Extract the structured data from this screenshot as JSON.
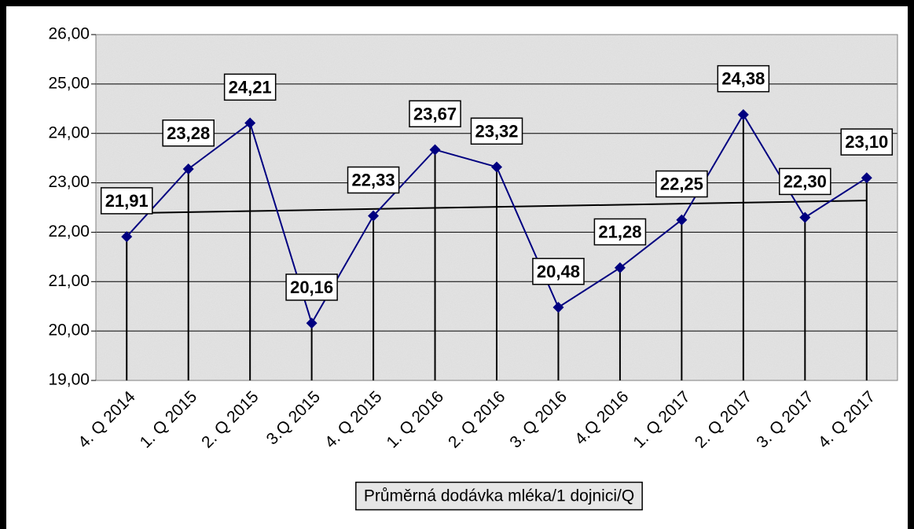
{
  "chart_data": {
    "type": "line",
    "categories": [
      "4. Q 2014",
      "1. Q 2015",
      "2. Q 2015",
      "3.Q 2015",
      "4. Q 2015",
      "1. Q 2016",
      "2. Q 2016",
      "3. Q 2016",
      "4.Q 2016",
      "1. Q 2017",
      "2. Q 2017",
      "3. Q 2017",
      "4. Q 2017"
    ],
    "series": [
      {
        "name": "Průměrná dodávka mléka/1 dojnici/Q",
        "color": "#000080",
        "values": [
          21.91,
          23.28,
          24.21,
          20.16,
          22.33,
          23.67,
          23.32,
          20.48,
          21.28,
          22.25,
          24.38,
          22.3,
          23.1
        ],
        "value_labels": [
          "21,91",
          "23,28",
          "24,21",
          "20,16",
          "22,33",
          "23,67",
          "23,32",
          "20,48",
          "21,28",
          "22,25",
          "24,38",
          "22,30",
          "23,10"
        ]
      }
    ],
    "ylim": [
      19,
      26
    ],
    "yticks": [
      {
        "value": 19,
        "label": "19,00"
      },
      {
        "value": 20,
        "label": "20,00"
      },
      {
        "value": 21,
        "label": "21,00"
      },
      {
        "value": 22,
        "label": "22,00"
      },
      {
        "value": 23,
        "label": "23,00"
      },
      {
        "value": 24,
        "label": "24,00"
      },
      {
        "value": 25,
        "label": "25,00"
      },
      {
        "value": 26,
        "label": "26,00"
      }
    ],
    "grid": true,
    "drop_lines": true,
    "trendline": true,
    "legend": "bottom"
  }
}
